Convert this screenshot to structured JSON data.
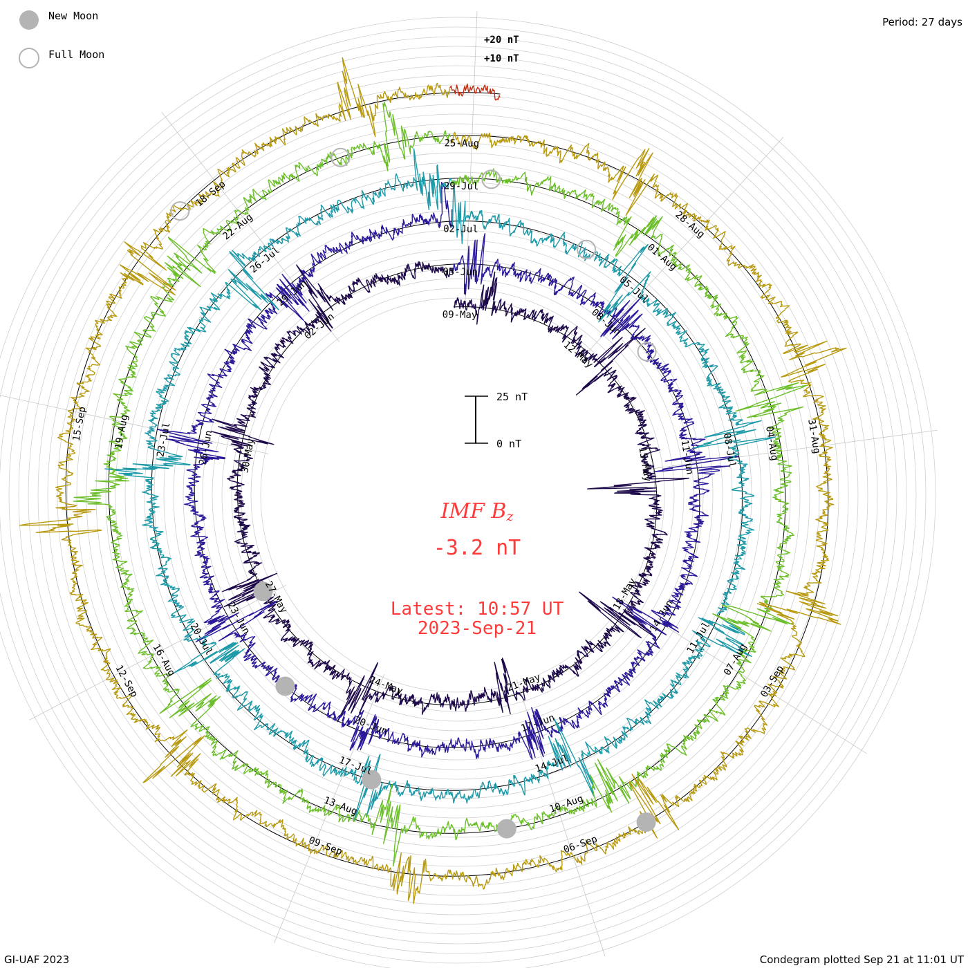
{
  "legend": {
    "new_moon": "New Moon",
    "full_moon": "Full Moon",
    "moon_fill": "#b4b4b4"
  },
  "period_label": "Period: 27 days",
  "credit": "GI-UAF 2023",
  "plotted": "Condegram plotted Sep 21 at 11:01 UT",
  "center": {
    "title": "IMF B",
    "title_sub": "z",
    "value": "-3.2 nT",
    "latest": "Latest: 10:57 UT",
    "date": "2023-Sep-21",
    "color": "#ff3a3a"
  },
  "chart_data": {
    "type": "condegram",
    "title": "IMF Bz",
    "period_days": 27,
    "units": "nT",
    "scale_bar": {
      "top_label": "25 nT",
      "bottom_label": "0 nT",
      "value_nT": 25
    },
    "reference_labels": [
      "+20 nT",
      "+10 nT"
    ],
    "series_start": "09-May",
    "series_end": "21-Sep",
    "latest_value_nT": -3.2,
    "rings": [
      {
        "name": "09-May to 04-Jun",
        "color": "#1e0a4a",
        "date_labels": [
          "09-May",
          "12-May",
          "15-May",
          "18-May",
          "21-May",
          "24-May",
          "27-May",
          "30-May",
          "02-Jun"
        ]
      },
      {
        "name": "05-Jun to 01-Jul",
        "color": "#2a1a9a",
        "date_labels": [
          "05-Jun",
          "08-Jun",
          "11-Jun",
          "14-Jun",
          "17-Jun",
          "20-Jun",
          "23-Jun",
          "26-Jun",
          "29-Jun"
        ]
      },
      {
        "name": "02-Jul to 28-Jul",
        "color": "#1e9aa8",
        "date_labels": [
          "02-Jul",
          "05-Jul",
          "08-Jul",
          "11-Jul",
          "14-Jul",
          "17-Jul",
          "20-Jul",
          "23-Jul",
          "26-Jul"
        ]
      },
      {
        "name": "29-Jul to 24-Aug",
        "color": "#6cbf2a",
        "date_labels": [
          "29-Jul",
          "01-Aug",
          "04-Aug",
          "07-Aug",
          "10-Aug",
          "13-Aug",
          "16-Aug",
          "19-Aug",
          "22-Aug"
        ]
      },
      {
        "name": "25-Aug to 20-Sep",
        "color": "#b89a10",
        "date_labels": [
          "25-Aug",
          "28-Aug",
          "31-Aug",
          "03-Sep",
          "06-Sep",
          "09-Sep",
          "12-Sep",
          "15-Sep",
          "18-Sep"
        ]
      },
      {
        "name": "21-Sep (partial)",
        "color": "#c42a10",
        "date_labels": []
      }
    ],
    "outer_ring_gradient": [
      "#c42a10",
      "#b85a10",
      "#b89a10"
    ],
    "moon_events": [
      {
        "type": "new",
        "label": "New Moon"
      },
      {
        "type": "full",
        "label": "Full Moon"
      }
    ]
  }
}
